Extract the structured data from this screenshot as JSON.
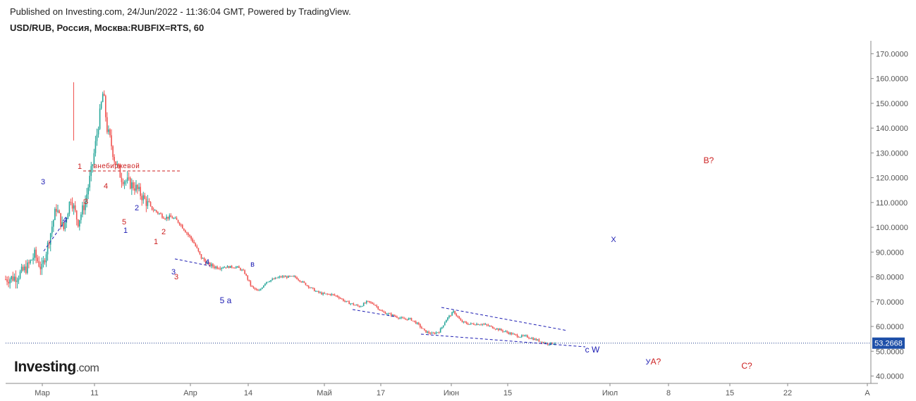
{
  "header": {
    "published_line": "Published on Investing.com, 24/Jun/2022 - 11:36:04 GMT, Powered by TradingView.",
    "symbol_line": "USD/RUB, Россия, Москва:RUBFIX=RTS, 60"
  },
  "logo": {
    "main": "Investing",
    "suffix": ".com"
  },
  "colors": {
    "up_candle": "#26a69a",
    "down_candle": "#ef5350",
    "wave_blue": "#1d1db3",
    "wave_red": "#cc1f1f",
    "price_line": "#1e3a8a",
    "price_label_bg": "#1e4fa8",
    "axis": "#555555"
  },
  "chart_data": {
    "type": "candlestick",
    "title": "USD/RUB, Россия, Москва:RUBFIX=RTS, 60",
    "y_axis": {
      "position": "right",
      "ticks": [
        "40.0000",
        "50.0000",
        "60.0000",
        "70.0000",
        "80.0000",
        "90.0000",
        "100.0000",
        "110.0000",
        "120.0000",
        "130.0000",
        "140.0000",
        "150.0000",
        "160.0000",
        "170.0000"
      ],
      "range": [
        37,
        175
      ]
    },
    "x_axis": {
      "ticks": [
        "Мар",
        "11",
        "Апр",
        "14",
        "Май",
        "17",
        "Июн",
        "15",
        "Июл",
        "8",
        "15",
        "22",
        "А"
      ]
    },
    "current_price": "53.2668",
    "price_path": [
      [
        0,
        79
      ],
      [
        3,
        80
      ],
      [
        6,
        84
      ],
      [
        8,
        89
      ],
      [
        10,
        83
      ],
      [
        12,
        95
      ],
      [
        14,
        108
      ],
      [
        16,
        99
      ],
      [
        18,
        112
      ],
      [
        20,
        102
      ],
      [
        22,
        110
      ],
      [
        24,
        125
      ],
      [
        26,
        145
      ],
      [
        27,
        155
      ],
      [
        28,
        140
      ],
      [
        29,
        135
      ],
      [
        30,
        128
      ],
      [
        32,
        120
      ],
      [
        34,
        118
      ],
      [
        36,
        116
      ],
      [
        38,
        112
      ],
      [
        40,
        108
      ],
      [
        42,
        106
      ],
      [
        44,
        104
      ],
      [
        46,
        104
      ],
      [
        48,
        102
      ],
      [
        50,
        98
      ],
      [
        52,
        94
      ],
      [
        54,
        88
      ],
      [
        56,
        85
      ],
      [
        58,
        84
      ],
      [
        60,
        84
      ],
      [
        62,
        84
      ],
      [
        64,
        84
      ],
      [
        66,
        82
      ],
      [
        68,
        76
      ],
      [
        70,
        74
      ],
      [
        72,
        78
      ],
      [
        74,
        79
      ],
      [
        76,
        80
      ],
      [
        78,
        80
      ],
      [
        80,
        80
      ],
      [
        82,
        78
      ],
      [
        84,
        76
      ],
      [
        86,
        74
      ],
      [
        88,
        73
      ],
      [
        90,
        73
      ],
      [
        92,
        72
      ],
      [
        94,
        70
      ],
      [
        96,
        69
      ],
      [
        98,
        68
      ],
      [
        100,
        70
      ],
      [
        102,
        69
      ],
      [
        104,
        66
      ],
      [
        106,
        65
      ],
      [
        108,
        64
      ],
      [
        110,
        63
      ],
      [
        112,
        63
      ],
      [
        114,
        61
      ],
      [
        116,
        58
      ],
      [
        118,
        57
      ],
      [
        120,
        58
      ],
      [
        122,
        63
      ],
      [
        124,
        66
      ],
      [
        126,
        62
      ],
      [
        128,
        61
      ],
      [
        130,
        61
      ],
      [
        132,
        61
      ],
      [
        134,
        60
      ],
      [
        136,
        59
      ],
      [
        138,
        58
      ],
      [
        140,
        57
      ],
      [
        142,
        56
      ],
      [
        144,
        56
      ],
      [
        146,
        55
      ],
      [
        148,
        54
      ],
      [
        150,
        53
      ],
      [
        152,
        53.3
      ]
    ],
    "dashed_lines": [
      {
        "color": "red",
        "y": [
          121.5,
          121.5
        ],
        "label": "внебиржевой"
      },
      {
        "color": "blue"
      },
      {
        "color": "blue"
      },
      {
        "color": "blue"
      },
      {
        "color": "blue"
      },
      {
        "color": "blue"
      }
    ],
    "annotations": [
      {
        "text": "3",
        "color": "blue"
      },
      {
        "text": "4",
        "color": "blue"
      },
      {
        "text": "1",
        "color": "red"
      },
      {
        "text": "3",
        "color": "red"
      },
      {
        "text": "4",
        "color": "red"
      },
      {
        "text": "2",
        "color": "blue"
      },
      {
        "text": "5",
        "color": "red"
      },
      {
        "text": "1",
        "color": "blue"
      },
      {
        "text": "2",
        "color": "red"
      },
      {
        "text": "1",
        "color": "red"
      },
      {
        "text": "3",
        "color": "blue"
      },
      {
        "text": "3",
        "color": "red"
      },
      {
        "text": "4",
        "color": "blue"
      },
      {
        "text": "в",
        "color": "blue"
      },
      {
        "text": "5 a",
        "color": "blue"
      },
      {
        "text": "c W",
        "color": "blue"
      },
      {
        "text": "X",
        "color": "blue"
      },
      {
        "text": "У",
        "color": "blue"
      },
      {
        "text": "A?",
        "color": "red"
      },
      {
        "text": "B?",
        "color": "red"
      },
      {
        "text": "C?",
        "color": "red"
      }
    ]
  }
}
